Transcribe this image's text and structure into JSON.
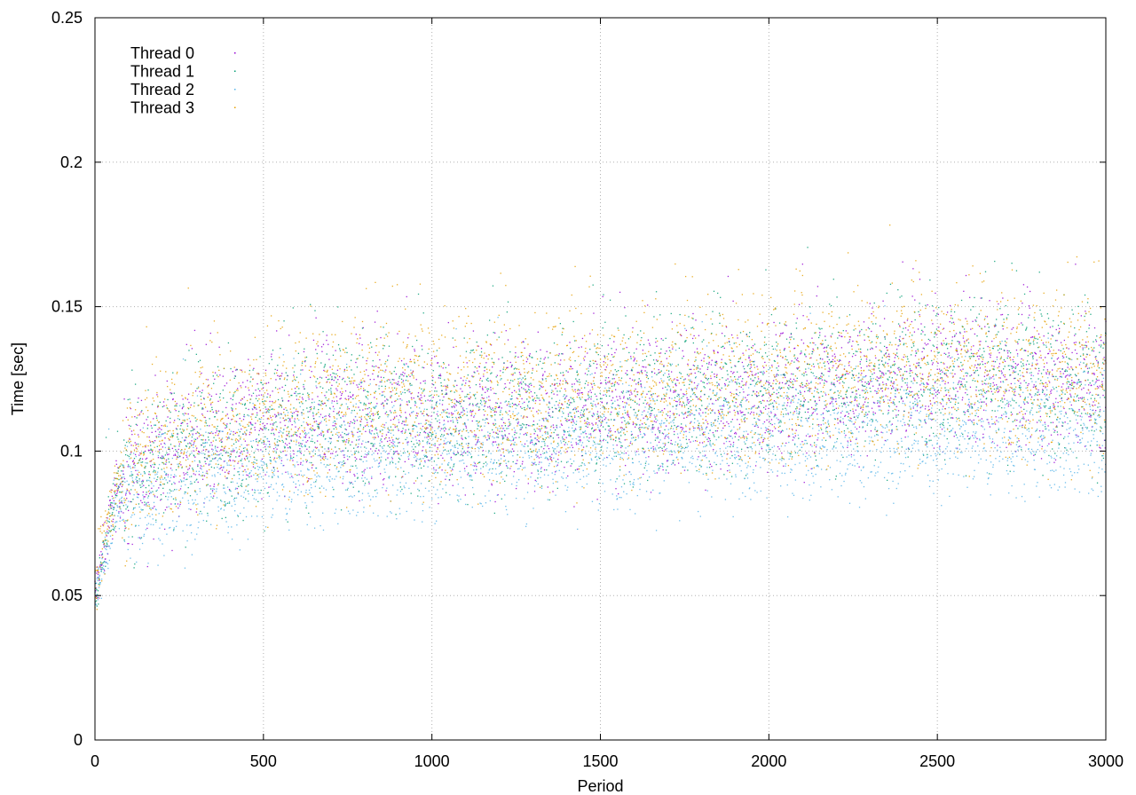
{
  "chart_data": {
    "type": "scatter",
    "title": "",
    "xlabel": "Period",
    "ylabel": "Time [sec]",
    "xlim": [
      0,
      3000
    ],
    "ylim": [
      0,
      0.25
    ],
    "xticks": [
      0,
      500,
      1000,
      1500,
      2000,
      2500,
      3000
    ],
    "xtick_labels": [
      "0",
      "500",
      "1000",
      "1500",
      "2000",
      "2500",
      "3000"
    ],
    "yticks": [
      0,
      0.05,
      0.1,
      0.15,
      0.2,
      0.25
    ],
    "ytick_labels": [
      "0",
      "0.05",
      "0.1",
      "0.15",
      "0.2",
      "0.25"
    ],
    "grid": true,
    "legend_position": "top-left",
    "series": [
      {
        "name": "Thread 0",
        "color": "#9400d3",
        "trend": [
          [
            0,
            0.05
          ],
          [
            60,
            0.085
          ],
          [
            150,
            0.098
          ],
          [
            300,
            0.104
          ],
          [
            500,
            0.108
          ],
          [
            700,
            0.113
          ],
          [
            1000,
            0.113
          ],
          [
            1500,
            0.115
          ],
          [
            2000,
            0.12
          ],
          [
            2500,
            0.127
          ],
          [
            3000,
            0.122
          ]
        ],
        "spread": 0.012
      },
      {
        "name": "Thread 1",
        "color": "#009e73",
        "trend": [
          [
            0,
            0.05
          ],
          [
            60,
            0.085
          ],
          [
            150,
            0.098
          ],
          [
            300,
            0.104
          ],
          [
            500,
            0.108
          ],
          [
            700,
            0.113
          ],
          [
            1000,
            0.112
          ],
          [
            1500,
            0.116
          ],
          [
            2000,
            0.121
          ],
          [
            2500,
            0.128
          ],
          [
            3000,
            0.123
          ]
        ],
        "spread": 0.013
      },
      {
        "name": "Thread 2",
        "color": "#56b4e9",
        "trend": [
          [
            0,
            0.048
          ],
          [
            60,
            0.08
          ],
          [
            150,
            0.086
          ],
          [
            300,
            0.09
          ],
          [
            500,
            0.094
          ],
          [
            700,
            0.098
          ],
          [
            1000,
            0.1
          ],
          [
            1500,
            0.104
          ],
          [
            2000,
            0.106
          ],
          [
            2500,
            0.108
          ],
          [
            3000,
            0.107
          ]
        ],
        "spread": 0.011
      },
      {
        "name": "Thread 3",
        "color": "#e69f00",
        "trend": [
          [
            0,
            0.052
          ],
          [
            60,
            0.088
          ],
          [
            150,
            0.101
          ],
          [
            300,
            0.108
          ],
          [
            500,
            0.112
          ],
          [
            700,
            0.118
          ],
          [
            1000,
            0.118
          ],
          [
            1500,
            0.12
          ],
          [
            2000,
            0.123
          ],
          [
            2500,
            0.131
          ],
          [
            3000,
            0.126
          ]
        ],
        "spread": 0.014
      }
    ]
  }
}
